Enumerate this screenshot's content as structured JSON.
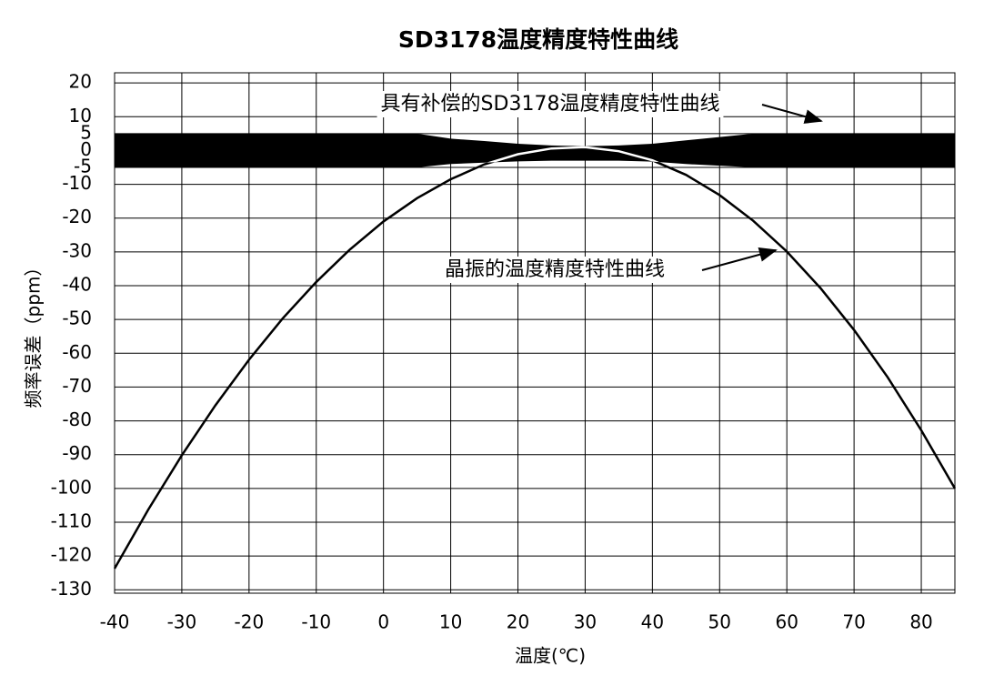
{
  "chart_data": {
    "type": "line",
    "title": "SD3178温度精度特性曲线",
    "x_label": "温度(℃)",
    "y_label": "频率误差（ppm）",
    "x": [
      -40,
      -35,
      -30,
      -25,
      -20,
      -15,
      -10,
      -5,
      0,
      5,
      10,
      15,
      20,
      25,
      30,
      35,
      40,
      45,
      50,
      55,
      60,
      65,
      70,
      75,
      80,
      85
    ],
    "series": [
      {
        "name": "具有补偿的SD3178温度精度特性曲线",
        "color": "#000000",
        "upper": [
          5,
          5,
          5,
          5,
          5,
          5,
          5,
          5,
          5,
          5,
          3.5,
          2.8,
          2,
          1.5,
          1.3,
          1.5,
          2,
          3,
          4,
          5,
          5,
          5,
          5,
          5,
          5,
          5
        ],
        "lower": [
          -5,
          -5,
          -5,
          -5,
          -5,
          -5,
          -5,
          -5,
          -5,
          -5,
          -4,
          -3.6,
          -3.2,
          -3,
          -3,
          -3,
          -3.3,
          -4,
          -4.5,
          -5,
          -5,
          -5,
          -5,
          -5,
          -5,
          -5
        ]
      },
      {
        "name": "晶振的温度精度特性曲线",
        "color": "#000000",
        "values": [
          -123.7,
          -106.3,
          -90.2,
          -75.4,
          -61.9,
          -49.7,
          -38.9,
          -29.3,
          -21.0,
          -14.1,
          -8.5,
          -4.1,
          -1.1,
          0.6,
          1.0,
          -0.2,
          -2.9,
          -7.2,
          -13.2,
          -20.8,
          -29.9,
          -40.7,
          -53.1,
          -67.1,
          -82.8,
          -100.0
        ]
      }
    ],
    "xlim": [
      -40,
      85
    ],
    "xticks": [
      -40,
      -30,
      -20,
      -10,
      0,
      10,
      20,
      30,
      40,
      50,
      60,
      70,
      80
    ],
    "ylim": [
      -131,
      23
    ],
    "yticks": [
      20,
      10,
      5,
      0,
      -5,
      -10,
      -20,
      -30,
      -40,
      -50,
      -60,
      -70,
      -80,
      -90,
      -100,
      -110,
      -120,
      -130
    ],
    "grid": true
  }
}
